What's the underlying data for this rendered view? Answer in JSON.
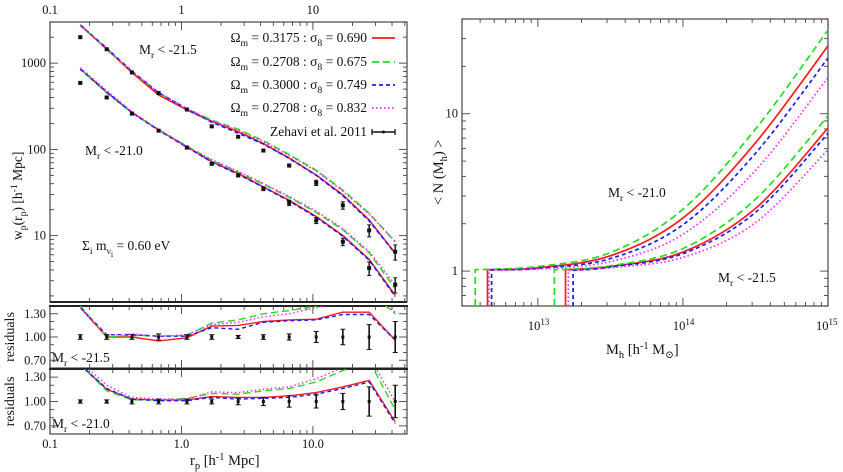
{
  "chart_data": [
    {
      "type": "line",
      "panel": "projected-correlation",
      "x": [
        0.17,
        0.27,
        0.42,
        0.67,
        1.1,
        1.7,
        2.7,
        4.2,
        6.6,
        10.6,
        16.9,
        26.8,
        42.3
      ],
      "xlim": [
        0.1,
        52
      ],
      "ylim": [
        1.7,
        3000
      ],
      "xscale": "log",
      "yscale": "log",
      "top_tick_labels": [
        "0.1",
        "1",
        "10"
      ],
      "ytick_labels": [
        "10",
        "100",
        "1000"
      ],
      "ylabel": [
        [
          "w",
          ""
        ],
        [
          "p",
          "sub"
        ],
        [
          "(r",
          ""
        ],
        [
          "p",
          "sub"
        ],
        [
          ") [h",
          ""
        ],
        [
          "-1",
          "sup"
        ],
        [
          " Mpc]",
          ""
        ]
      ],
      "annotations": [
        [
          [
            "M",
            ""
          ],
          [
            "r",
            "sub"
          ],
          [
            " < -21.5",
            ""
          ]
        ],
        [
          [
            "M",
            ""
          ],
          [
            "r",
            "sub"
          ],
          [
            " < -21.0",
            ""
          ]
        ],
        [
          [
            "Σ",
            ""
          ],
          [
            "i",
            "sub"
          ],
          [
            " m",
            ""
          ],
          [
            "ν",
            "sub"
          ],
          [
            "i",
            "subsub"
          ],
          [
            " = 0.60 eV",
            ""
          ]
        ]
      ],
      "legend_placement": "top-right",
      "legend": [
        {
          "label": [
            [
              "Ω",
              ""
            ],
            [
              "m",
              "sub"
            ],
            [
              " = 0.3175 : σ",
              ""
            ],
            [
              "8",
              "sub"
            ],
            [
              " = 0.690",
              ""
            ]
          ],
          "color": "#ff1a1a",
          "style": "solid"
        },
        {
          "label": [
            [
              "Ω",
              ""
            ],
            [
              "m",
              "sub"
            ],
            [
              " = 0.2708 : σ",
              ""
            ],
            [
              "8",
              "sub"
            ],
            [
              " = 0.675",
              ""
            ]
          ],
          "color": "#22dd22",
          "style": "long-dash"
        },
        {
          "label": [
            [
              "Ω",
              ""
            ],
            [
              "m",
              "sub"
            ],
            [
              " = 0.3000 : σ",
              ""
            ],
            [
              "8",
              "sub"
            ],
            [
              " = 0.749",
              ""
            ]
          ],
          "color": "#1a1aff",
          "style": "short-dash"
        },
        {
          "label": [
            [
              "Ω",
              ""
            ],
            [
              "m",
              "sub"
            ],
            [
              " = 0.2708 : σ",
              ""
            ],
            [
              "8",
              "sub"
            ],
            [
              " = 0.832",
              ""
            ]
          ],
          "color": "#ff22ff",
          "style": "dotted"
        },
        {
          "label": [
            [
              "Zehavi et al. 2011",
              ""
            ]
          ],
          "color": "#111111",
          "style": "errorbar"
        }
      ],
      "observed": [
        {
          "sample": "Mr < -21.5",
          "wp": [
            2000,
            1450,
            780,
            450,
            290,
            185,
            140,
            97,
            65,
            41,
            22.5,
            11.5,
            6.5
          ]
        },
        {
          "sample": "Mr < -21.0",
          "wp": [
            590,
            400,
            260,
            165,
            105,
            68,
            50,
            35,
            24,
            15,
            8.5,
            4.2,
            2.7
          ]
        }
      ]
    },
    {
      "type": "line",
      "panel": "residuals-21.5",
      "x": [
        0.17,
        0.27,
        0.42,
        0.67,
        1.1,
        1.7,
        2.7,
        4.2,
        6.6,
        10.6,
        16.9,
        26.8,
        42.3
      ],
      "xlim": [
        0.1,
        52
      ],
      "ylim": [
        0.6,
        1.4
      ],
      "xscale": "log",
      "ylabel": "residuals",
      "ytick_labels": [
        "1.30",
        "1.00",
        "0.70"
      ],
      "label": [
        [
          "M",
          ""
        ],
        [
          "r",
          "sub"
        ],
        [
          " < -21.5",
          ""
        ]
      ],
      "series": [
        {
          "color": "#ff1a1a",
          "style": "solid",
          "values": [
            1.38,
            1.0,
            1.0,
            0.95,
            0.99,
            1.14,
            1.15,
            1.2,
            1.22,
            1.23,
            1.32,
            1.32,
            0.96
          ]
        },
        {
          "color": "#22dd22",
          "style": "long-dash",
          "values": [
            1.4,
            1.0,
            1.02,
            1.01,
            1.02,
            1.18,
            1.22,
            1.3,
            1.34,
            1.4,
            1.5,
            1.58,
            1.3
          ]
        },
        {
          "color": "#1a1aff",
          "style": "short-dash",
          "values": [
            1.38,
            1.03,
            1.03,
            1.01,
            1.01,
            1.12,
            1.1,
            1.19,
            1.21,
            1.22,
            1.29,
            1.29,
            0.96
          ]
        },
        {
          "color": "#ff22ff",
          "style": "dotted",
          "values": [
            1.38,
            1.02,
            1.04,
            1.01,
            1.03,
            1.16,
            1.19,
            1.26,
            1.3,
            1.38,
            1.45,
            1.55,
            1.32
          ]
        }
      ],
      "data_values": [
        1,
        1,
        1,
        1,
        1,
        1,
        1,
        1,
        1,
        1,
        1,
        1,
        1
      ],
      "data_errors": [
        0.03,
        0.03,
        0.03,
        0.04,
        0.03,
        0.03,
        0.02,
        0.03,
        0.04,
        0.07,
        0.1,
        0.16,
        0.2
      ]
    },
    {
      "type": "line",
      "panel": "residuals-21.0",
      "x": [
        0.17,
        0.27,
        0.42,
        0.67,
        1.1,
        1.7,
        2.7,
        4.2,
        6.6,
        10.6,
        16.9,
        26.8,
        42.3
      ],
      "xlim": [
        0.1,
        52
      ],
      "ylim": [
        0.6,
        1.4
      ],
      "xscale": "log",
      "ylabel": "residuals",
      "ytick_labels": [
        "1.30",
        "1.00",
        "0.70"
      ],
      "xtick_labels": [
        "0.1",
        "1.0",
        "10.0"
      ],
      "xlabel": [
        [
          "r",
          ""
        ],
        [
          "p",
          "sub"
        ],
        [
          " [h",
          ""
        ],
        [
          "-1",
          "sup"
        ],
        [
          " Mpc]",
          ""
        ]
      ],
      "label": [
        [
          "M",
          ""
        ],
        [
          "r",
          "sub"
        ],
        [
          " < -21.0",
          ""
        ]
      ],
      "series": [
        {
          "color": "#ff1a1a",
          "style": "solid",
          "values": [
            1.45,
            1.15,
            1.03,
            1.02,
            1.02,
            1.06,
            1.05,
            1.05,
            1.07,
            1.11,
            1.18,
            1.26,
            0.75
          ]
        },
        {
          "color": "#22dd22",
          "style": "long-dash",
          "values": [
            1.45,
            1.13,
            1.02,
            1.02,
            1.04,
            1.1,
            1.09,
            1.13,
            1.16,
            1.24,
            1.38,
            1.5,
            0.9
          ]
        },
        {
          "color": "#1a1aff",
          "style": "short-dash",
          "values": [
            1.45,
            1.16,
            1.03,
            1.01,
            1.01,
            1.05,
            1.03,
            1.04,
            1.05,
            1.09,
            1.16,
            1.24,
            0.73
          ]
        },
        {
          "color": "#ff22ff",
          "style": "dotted",
          "values": [
            1.5,
            1.2,
            1.05,
            1.03,
            1.03,
            1.12,
            1.11,
            1.15,
            1.18,
            1.28,
            1.42,
            1.55,
            1.0
          ]
        }
      ],
      "data_values": [
        1,
        1,
        1,
        1,
        1,
        1,
        1,
        1,
        1,
        1,
        1,
        1,
        1
      ],
      "data_errors": [
        0.02,
        0.02,
        0.03,
        0.03,
        0.03,
        0.03,
        0.04,
        0.05,
        0.07,
        0.08,
        0.1,
        0.18,
        0.2
      ]
    },
    {
      "type": "line",
      "panel": "hod",
      "xlim": [
        3000000000000.0,
        1000000000000000.0
      ],
      "ylim": [
        0.6,
        40
      ],
      "xscale": "log",
      "yscale": "log",
      "xtick_labels": [
        [
          "10",
          ""
        ],
        [
          "13",
          "sup"
        ]
      ],
      "xtick_labels_2": [
        [
          "10",
          ""
        ],
        [
          "14",
          "sup"
        ]
      ],
      "xtick_labels_3": [
        [
          "10",
          ""
        ],
        [
          "15",
          "sup"
        ]
      ],
      "ytick_labels": [
        "1",
        "10"
      ],
      "xlabel": [
        [
          "M",
          ""
        ],
        [
          "h",
          "sub"
        ],
        [
          " [h",
          ""
        ],
        [
          "-1",
          "sup"
        ],
        [
          " M",
          ""
        ],
        [
          "⊙",
          "sub"
        ],
        [
          "]",
          ""
        ]
      ],
      "ylabel": [
        [
          "< N (M",
          ""
        ],
        [
          "h",
          "sub"
        ],
        [
          ") >",
          ""
        ]
      ],
      "annotations": [
        [
          [
            "M",
            ""
          ],
          [
            "r",
            "sub"
          ],
          [
            " < -21.0",
            ""
          ]
        ],
        [
          [
            "M",
            ""
          ],
          [
            "r",
            "sub"
          ],
          [
            " < -21.5",
            ""
          ]
        ]
      ],
      "series": [
        {
          "sample": "Mr < -21.0",
          "color": "#ff1a1a",
          "style": "solid",
          "x": [
            4500000000000.0,
            4500000000000.0,
            10000000000000.0,
            31600000000000.0,
            100000000000000.0,
            316000000000000.0,
            1000000000000000.0
          ],
          "y": [
            0.6,
            1.02,
            1.05,
            1.25,
            2.17,
            6.53,
            27
          ]
        },
        {
          "sample": "Mr < -21.0",
          "color": "#22dd22",
          "style": "long-dash",
          "x": [
            3700000000000.0,
            3700000000000.0,
            10000000000000.0,
            31600000000000.0,
            100000000000000.0,
            316000000000000.0,
            1000000000000000.0
          ],
          "y": [
            0.6,
            1.02,
            1.07,
            1.31,
            2.47,
            7.98,
            34
          ]
        },
        {
          "sample": "Mr < -21.0",
          "color": "#1a1aff",
          "style": "short-dash",
          "x": [
            4800000000000.0,
            4800000000000.0,
            10000000000000.0,
            31600000000000.0,
            100000000000000.0,
            316000000000000.0,
            1000000000000000.0
          ],
          "y": [
            0.6,
            1.02,
            1.04,
            1.2,
            1.97,
            5.6,
            22.6
          ]
        },
        {
          "sample": "Mr < -21.0",
          "color": "#ff22ff",
          "style": "dotted",
          "x": [
            4600000000000.0,
            4600000000000.0,
            10000000000000.0,
            31600000000000.0,
            100000000000000.0,
            316000000000000.0,
            1000000000000000.0
          ],
          "y": [
            0.6,
            1.01,
            1.03,
            1.15,
            1.71,
            4.36,
            17
          ]
        },
        {
          "sample": "Mr < -21.5",
          "color": "#ff1a1a",
          "style": "solid",
          "x": [
            15500000000000.0,
            15500000000000.0,
            31600000000000.0,
            100000000000000.0,
            316000000000000.0,
            1000000000000000.0
          ],
          "y": [
            0.6,
            1.02,
            1.07,
            1.32,
            2.5,
            8.1
          ]
        },
        {
          "sample": "Mr < -21.5",
          "color": "#22dd22",
          "style": "long-dash",
          "x": [
            13000000000000.0,
            13000000000000.0,
            31600000000000.0,
            100000000000000.0,
            316000000000000.0,
            1000000000000000.0
          ],
          "y": [
            0.6,
            1.02,
            1.08,
            1.39,
            2.86,
            9.7
          ]
        },
        {
          "sample": "Mr < -21.5",
          "color": "#1a1aff",
          "style": "short-dash",
          "x": [
            17500000000000.0,
            17500000000000.0,
            31600000000000.0,
            100000000000000.0,
            316000000000000.0,
            1000000000000000.0
          ],
          "y": [
            0.6,
            1.01,
            1.06,
            1.29,
            2.36,
            7.5
          ]
        },
        {
          "sample": "Mr < -21.5",
          "color": "#ff22ff",
          "style": "dotted",
          "x": [
            16200000000000.0,
            16200000000000.0,
            31600000000000.0,
            100000000000000.0,
            316000000000000.0,
            1000000000000000.0
          ],
          "y": [
            0.6,
            1.01,
            1.05,
            1.22,
            2.03,
            5.9
          ]
        }
      ]
    }
  ]
}
